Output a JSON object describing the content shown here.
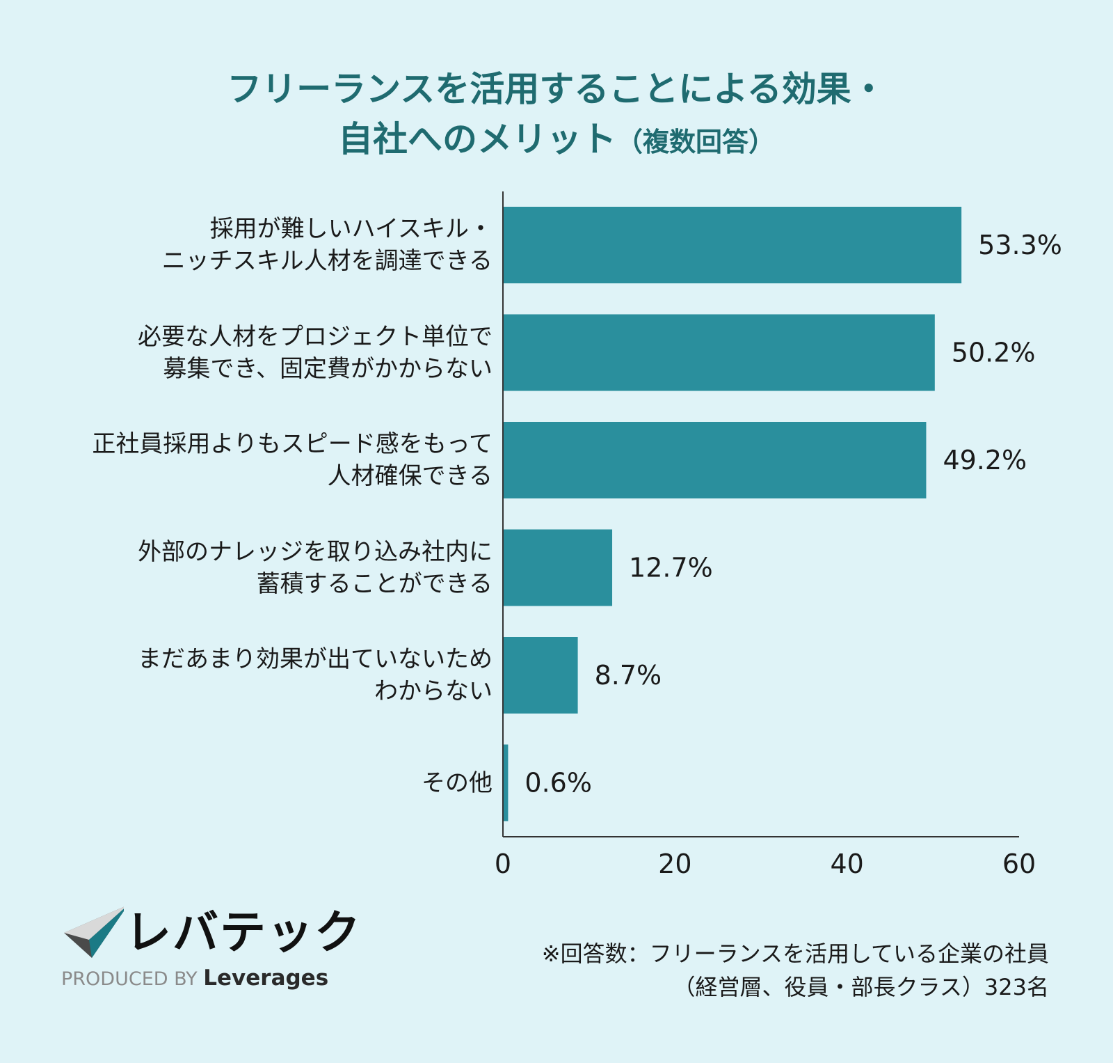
{
  "title": {
    "line1": "フリーランスを活用することによる効果・",
    "line2": "自社へのメリット",
    "line2_sub": "（複数回答）"
  },
  "colors": {
    "background": "#dff3f7",
    "bar": "#2a8f9d",
    "title": "#1f6b70"
  },
  "chart_data": {
    "type": "bar",
    "orientation": "horizontal",
    "categories": [
      [
        "採用が難しいハイスキル・",
        "ニッチスキル人材を調達できる"
      ],
      [
        "必要な人材をプロジェクト単位で",
        "募集でき、固定費がかからない"
      ],
      [
        "正社員採用よりもスピード感をもって",
        "人材確保できる"
      ],
      [
        "外部のナレッジを取り込み社内に",
        "蓄積することができる"
      ],
      [
        "まだあまり効果が出ていないため",
        "わからない"
      ],
      [
        "その他"
      ]
    ],
    "values": [
      53.3,
      50.2,
      49.2,
      12.7,
      8.7,
      0.6
    ],
    "data_labels": [
      "53.3%",
      "50.2%",
      "49.2%",
      "12.7%",
      "8.7%",
      "0.6%"
    ],
    "xlim": [
      0,
      60
    ],
    "xticks": [
      0,
      20,
      40,
      60
    ],
    "xtick_labels": [
      "0",
      "20",
      "40",
      "60"
    ],
    "grid": false
  },
  "note": {
    "line1": "※回答数：フリーランスを活用している企業の社員",
    "line2": "（経営層、役員・部長クラス）323名"
  },
  "logo": {
    "name": "レバテック",
    "produced_by": "PRODUCED BY",
    "company": "Leverages"
  }
}
